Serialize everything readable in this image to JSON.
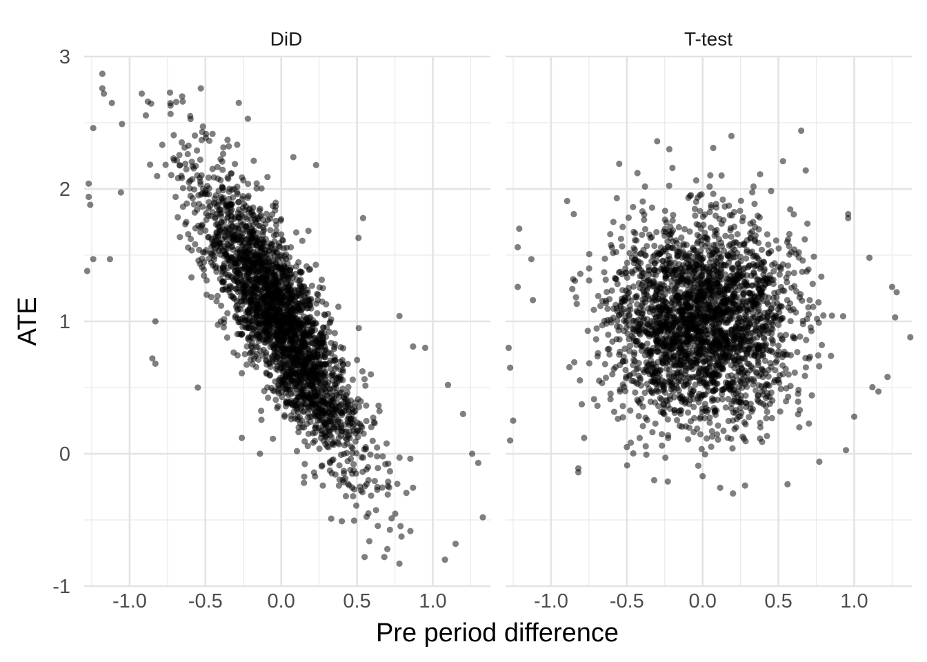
{
  "chart_data": {
    "type": "scatter",
    "xlabel": "Pre period difference",
    "ylabel": "ATE",
    "xlim": [
      -1.3,
      1.38
    ],
    "ylim": [
      -1.0,
      3.0
    ],
    "x_ticks": [
      -1.0,
      -0.5,
      0.0,
      0.5,
      1.0
    ],
    "x_tick_labels": [
      "-1.0",
      "-0.5",
      "0.0",
      "0.5",
      "1.0"
    ],
    "y_ticks": [
      -1,
      0,
      1,
      2,
      3
    ],
    "y_tick_labels": [
      "-1",
      "0",
      "1",
      "2",
      "3"
    ],
    "grid": true,
    "point_color": "#000000",
    "point_opacity": 0.5,
    "panels": [
      {
        "strip_label": "DiD",
        "cloud": {
          "mean_x": 0.0,
          "mean_y": 1.0,
          "sd_x": 0.27,
          "sd_y": 0.55,
          "correlation": -0.84
        },
        "points": [
          [
            -1.18,
            2.87
          ],
          [
            -1.18,
            2.76
          ],
          [
            -1.17,
            2.72
          ],
          [
            -1.24,
            2.46
          ],
          [
            -1.27,
            2.04
          ],
          [
            -1.27,
            1.94
          ],
          [
            -1.26,
            1.88
          ],
          [
            -1.24,
            1.47
          ],
          [
            -1.28,
            1.38
          ],
          [
            -1.13,
            1.47
          ],
          [
            -1.05,
            2.49
          ],
          [
            -0.92,
            2.72
          ],
          [
            -0.88,
            2.66
          ],
          [
            -0.53,
            2.76
          ],
          [
            -0.28,
            2.65
          ],
          [
            -0.22,
            2.53
          ],
          [
            -0.73,
            2.63
          ],
          [
            -0.65,
            2.66
          ],
          [
            -0.6,
            2.55
          ],
          [
            0.08,
            2.24
          ],
          [
            0.23,
            2.18
          ],
          [
            -0.85,
            0.72
          ],
          [
            -0.83,
            0.68
          ],
          [
            0.54,
            1.78
          ],
          [
            0.51,
            1.63
          ],
          [
            0.78,
            1.04
          ],
          [
            0.87,
            0.81
          ],
          [
            0.95,
            0.8
          ],
          [
            1.1,
            0.52
          ],
          [
            1.2,
            0.3
          ],
          [
            1.26,
            0.0
          ],
          [
            1.3,
            -0.07
          ],
          [
            1.33,
            -0.48
          ],
          [
            1.15,
            -0.68
          ],
          [
            1.08,
            -0.8
          ],
          [
            0.78,
            -0.83
          ],
          [
            0.68,
            -0.78
          ],
          [
            0.7,
            -0.72
          ],
          [
            0.55,
            -0.78
          ],
          [
            0.4,
            -0.51
          ],
          [
            0.33,
            -0.49
          ],
          [
            0.15,
            -0.22
          ],
          [
            -0.14,
            0.0
          ],
          [
            -0.26,
            0.12
          ],
          [
            -0.55,
            0.5
          ],
          [
            -0.83,
            1.0
          ]
        ]
      },
      {
        "strip_label": "T-test",
        "cloud": {
          "mean_x": 0.0,
          "mean_y": 1.0,
          "sd_x": 0.3,
          "sd_y": 0.37,
          "correlation": 0.0
        },
        "points": [
          [
            -1.27,
            0.1
          ],
          [
            -1.25,
            0.25
          ],
          [
            -1.27,
            0.65
          ],
          [
            -1.28,
            0.8
          ],
          [
            -1.22,
            1.56
          ],
          [
            -1.21,
            1.7
          ],
          [
            -1.22,
            1.26
          ],
          [
            -1.13,
            1.47
          ],
          [
            -1.12,
            1.16
          ],
          [
            -0.85,
            1.81
          ],
          [
            -0.82,
            -0.11
          ],
          [
            -0.82,
            -0.14
          ],
          [
            -0.55,
            2.19
          ],
          [
            -0.43,
            2.12
          ],
          [
            -0.3,
            2.36
          ],
          [
            -0.22,
            2.3
          ],
          [
            0.07,
            2.31
          ],
          [
            0.19,
            2.4
          ],
          [
            0.53,
            2.21
          ],
          [
            0.65,
            2.44
          ],
          [
            0.68,
            2.14
          ],
          [
            0.96,
            1.81
          ],
          [
            0.96,
            1.78
          ],
          [
            1.1,
            1.48
          ],
          [
            1.25,
            1.26
          ],
          [
            1.28,
            1.22
          ],
          [
            1.27,
            1.03
          ],
          [
            1.37,
            0.88
          ],
          [
            1.22,
            0.58
          ],
          [
            1.16,
            0.47
          ],
          [
            1.0,
            0.28
          ],
          [
            0.77,
            -0.06
          ],
          [
            0.56,
            -0.23
          ],
          [
            0.28,
            -0.24
          ],
          [
            0.2,
            -0.3
          ],
          [
            0.0,
            -0.17
          ],
          [
            -0.23,
            -0.21
          ],
          [
            -0.32,
            -0.2
          ],
          [
            -0.5,
            0.05
          ]
        ]
      }
    ]
  }
}
